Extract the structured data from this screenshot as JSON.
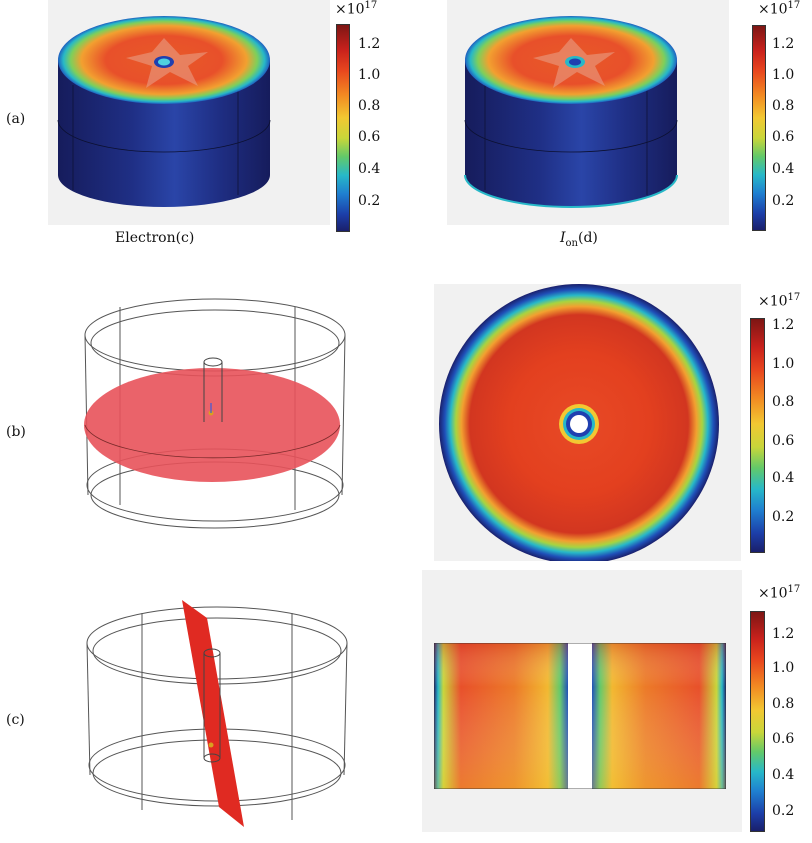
{
  "row_labels": [
    "(a)",
    "(b)",
    "(c)"
  ],
  "captions": {
    "electron": "Electron(c)",
    "ion_main": "I",
    "ion_sub": "on",
    "ion_tail": "(d)"
  },
  "colorbar": {
    "exponent_base": "×10",
    "exponent_power": "17",
    "ticks_a_left": [
      "1.2",
      "1.0",
      "0.8",
      "0.6",
      "0.4",
      "0.2"
    ],
    "ticks_a_right": [
      "1.2",
      "1.0",
      "0.8",
      "0.6",
      "0.4",
      "0.2"
    ],
    "ticks_b": [
      "1.2",
      "1.0",
      "0.8",
      "0.6",
      "0.4",
      "0.2"
    ],
    "ticks_c": [
      "1.2",
      "1.0",
      "0.8",
      "0.6",
      "0.4",
      "0.2"
    ],
    "colors": [
      "#1a1f6b",
      "#1f7fd0",
      "#27b8c8",
      "#62c96a",
      "#f2c832",
      "#f28a22",
      "#e8461e",
      "#7d1614"
    ]
  }
}
